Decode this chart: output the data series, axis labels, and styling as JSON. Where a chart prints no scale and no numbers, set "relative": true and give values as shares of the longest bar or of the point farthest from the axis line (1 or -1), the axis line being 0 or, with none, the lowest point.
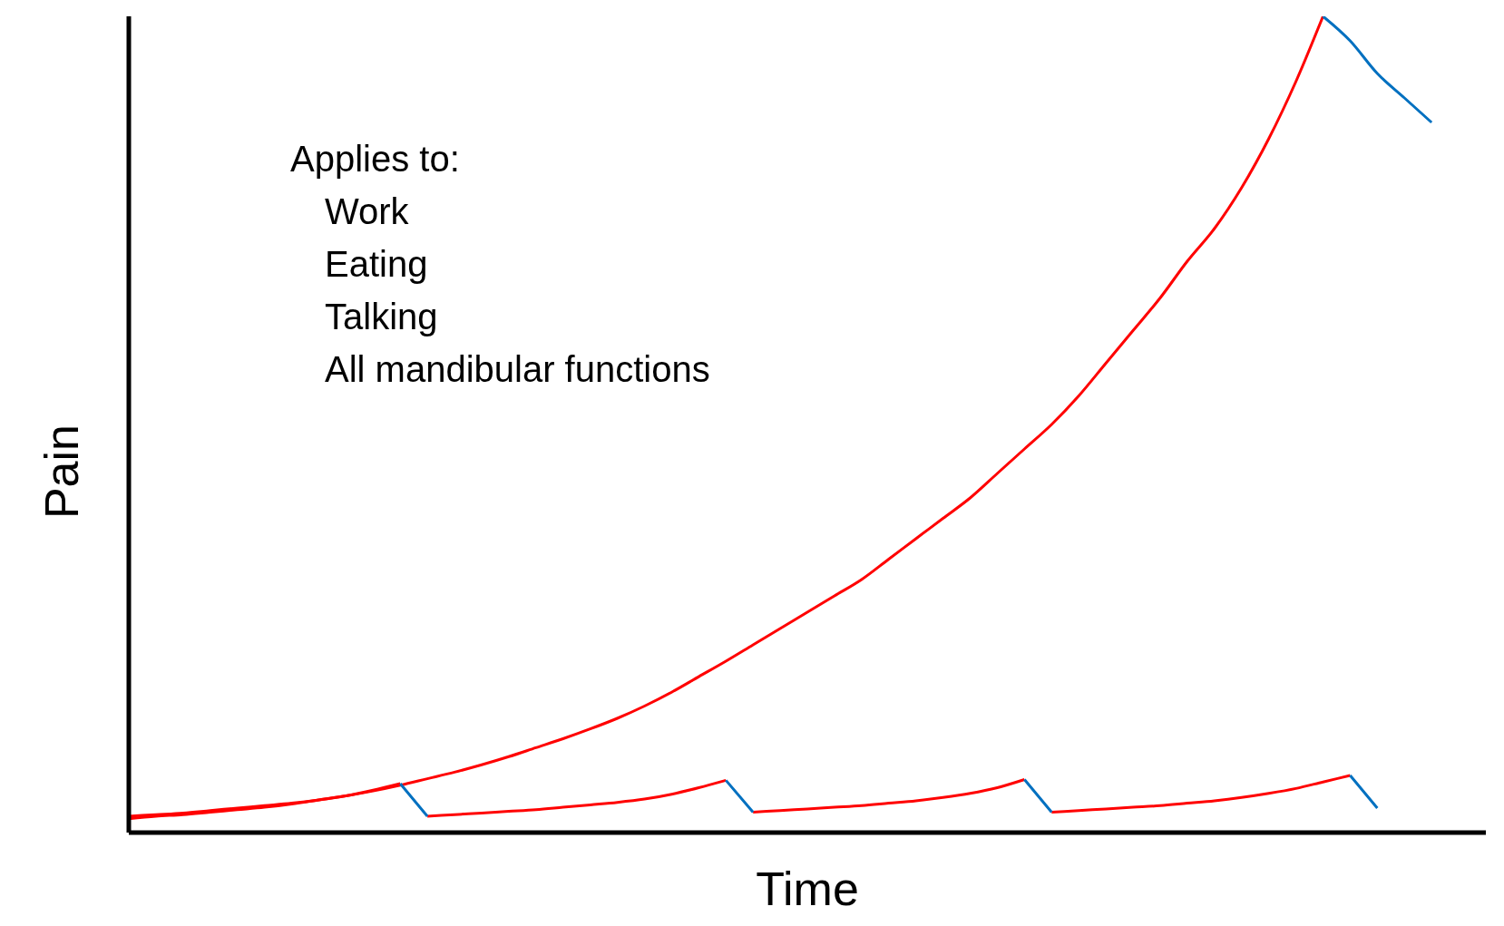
{
  "chart_data": {
    "type": "line",
    "relative": true,
    "xlabel": "Time",
    "ylabel": "Pain",
    "grid": false,
    "legend": false,
    "annotations": [
      "Applies to:",
      "Work",
      "Eating",
      "Talking",
      "All mandibular functions"
    ],
    "categories": [
      null,
      null,
      null,
      null,
      null,
      null,
      null,
      null,
      null,
      null,
      null,
      null,
      null,
      null,
      null,
      null,
      null,
      null,
      null,
      null,
      null,
      null,
      null,
      null,
      null,
      null,
      null,
      null,
      null,
      null,
      null,
      null,
      null,
      null,
      null,
      null,
      null,
      null,
      null,
      null,
      null,
      null,
      null,
      null,
      null,
      null,
      null,
      null,
      null,
      null,
      null
    ],
    "series": [
      {
        "color": "#ff0000",
        "values": [
          0.017,
          0.02,
          0.022,
          0.025,
          0.028,
          0.031,
          0.035,
          0.04,
          0.045,
          0.051,
          0.058,
          0.066,
          0.074,
          0.083,
          0.093,
          0.104,
          0.115,
          0.127,
          0.14,
          0.155,
          0.172,
          0.191,
          0.21,
          0.23,
          0.25,
          0.27,
          0.29,
          0.31,
          0.335,
          0.36,
          0.385,
          0.41,
          0.44,
          0.47,
          0.5,
          0.535,
          0.575,
          0.615,
          0.655,
          0.7,
          0.74,
          0.79,
          0.85,
          0.92,
          1.0,
          null,
          null,
          null,
          null,
          null,
          null
        ]
      },
      {
        "color": "#ff0000",
        "values": [
          0.02,
          0.022,
          0.024,
          0.027,
          0.03,
          0.033,
          0.036,
          0.04,
          0.045,
          0.052,
          0.06,
          null,
          null,
          null,
          null,
          null,
          null,
          null,
          null,
          null,
          null,
          null,
          null,
          0.025,
          0.027,
          0.029,
          0.031,
          0.033,
          0.036,
          0.039,
          0.043,
          0.048,
          0.055,
          0.065,
          null,
          null,
          null,
          null,
          null,
          null,
          null,
          null,
          null,
          null,
          null,
          null,
          null,
          null,
          null,
          null,
          null
        ]
      },
      {
        "color": "#ff0000",
        "values": [
          null,
          null,
          null,
          null,
          null,
          null,
          null,
          null,
          null,
          null,
          null,
          0.02,
          0.022,
          0.024,
          0.026,
          0.028,
          0.031,
          0.034,
          0.037,
          0.041,
          0.047,
          0.055,
          0.064,
          null,
          null,
          null,
          null,
          null,
          null,
          null,
          null,
          null,
          null,
          null,
          0.025,
          0.027,
          0.029,
          0.031,
          0.033,
          0.036,
          0.039,
          0.043,
          0.048,
          0.054,
          0.062,
          0.07,
          null,
          null,
          null,
          null,
          null
        ]
      },
      {
        "color": "#0070c0",
        "values": [
          null,
          null,
          null,
          null,
          null,
          null,
          null,
          null,
          null,
          null,
          0.06,
          0.02,
          null,
          null,
          null,
          null,
          null,
          null,
          null,
          null,
          null,
          null,
          null,
          null,
          null,
          null,
          null,
          null,
          null,
          null,
          null,
          null,
          null,
          0.065,
          0.025,
          null,
          null,
          null,
          null,
          null,
          null,
          null,
          null,
          null,
          null,
          null,
          null,
          null,
          null,
          null,
          null
        ]
      },
      {
        "color": "#0070c0",
        "values": [
          null,
          null,
          null,
          null,
          null,
          null,
          null,
          null,
          null,
          null,
          null,
          null,
          null,
          null,
          null,
          null,
          null,
          null,
          null,
          null,
          null,
          null,
          0.064,
          0.025,
          null,
          null,
          null,
          null,
          null,
          null,
          null,
          null,
          null,
          null,
          null,
          null,
          null,
          null,
          null,
          null,
          null,
          null,
          null,
          null,
          null,
          0.07,
          0.03,
          null,
          null,
          null,
          null
        ]
      },
      {
        "color": "#0070c0",
        "values": [
          null,
          null,
          null,
          null,
          null,
          null,
          null,
          null,
          null,
          null,
          null,
          null,
          null,
          null,
          null,
          null,
          null,
          null,
          null,
          null,
          null,
          null,
          null,
          null,
          null,
          null,
          null,
          null,
          null,
          null,
          null,
          null,
          null,
          null,
          null,
          null,
          null,
          null,
          null,
          null,
          null,
          null,
          null,
          null,
          1.0,
          0.97,
          0.93,
          0.9,
          0.87,
          null,
          null
        ]
      }
    ]
  }
}
